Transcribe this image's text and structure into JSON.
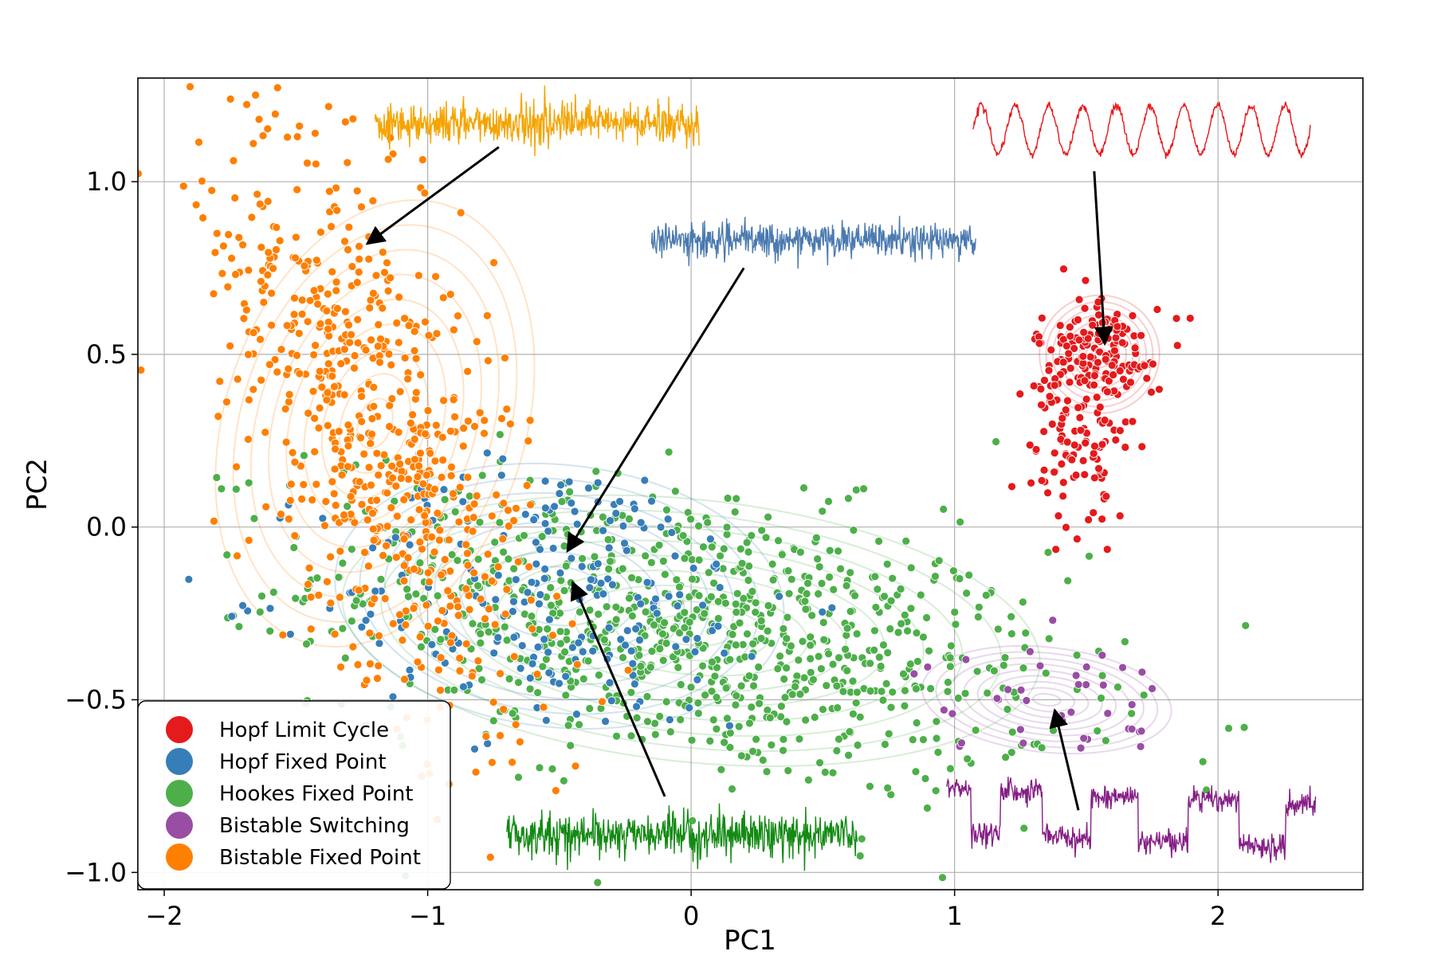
{
  "chart_data": {
    "type": "scatter",
    "title": "",
    "xlabel": "PC1",
    "ylabel": "PC2",
    "xlim": [
      -2.1,
      2.55
    ],
    "ylim": [
      -1.05,
      1.3
    ],
    "xticks": [
      -2,
      -1,
      0,
      1,
      2
    ],
    "xtick_labels": [
      "−2",
      "−1",
      "0",
      "1",
      "2"
    ],
    "yticks": [
      -1.0,
      -0.5,
      0.0,
      0.5,
      1.0
    ],
    "ytick_labels": [
      "−1.0",
      "−0.5",
      "0.0",
      "0.5",
      "1.0"
    ],
    "grid": true,
    "legend_position": "lower-left",
    "series": [
      {
        "name": "Hopf Limit Cycle",
        "color": "#e41a1c",
        "center": [
          1.55,
          0.5
        ],
        "spread": [
          0.12,
          0.09
        ],
        "count": 260,
        "tail": [
          [
            1.45,
            0.2
          ],
          [
            1.3,
            -0.1
          ],
          [
            1.0,
            -0.2
          ]
        ]
      },
      {
        "name": "Hopf Fixed Point",
        "color": "#377eb8",
        "center": [
          -0.5,
          -0.2
        ],
        "spread": [
          0.45,
          0.2
        ],
        "count": 220
      },
      {
        "name": "Hookes Fixed Point",
        "color": "#4daf4a",
        "center": [
          0.0,
          -0.3
        ],
        "spread": [
          0.7,
          0.2
        ],
        "count": 900
      },
      {
        "name": "Bistable Switching",
        "color": "#984ea3",
        "center": [
          1.35,
          -0.5
        ],
        "spread": [
          0.25,
          0.08
        ],
        "count": 40
      },
      {
        "name": "Bistable Fixed Point",
        "color": "#ff7f00",
        "center": [
          -1.2,
          0.3
        ],
        "spread": [
          0.3,
          0.35
        ],
        "count": 650
      }
    ],
    "insets": [
      {
        "series": "Bistable Fixed Point",
        "color": "#f5a400",
        "x_range": [
          -1.2,
          0.03
        ],
        "y_center": 1.17,
        "amplitude": 0.05,
        "style": "noise",
        "arrow_from": [
          -0.73,
          1.1
        ],
        "arrow_to": [
          -1.23,
          0.82
        ]
      },
      {
        "series": "Hopf Limit Cycle",
        "color": "#e8161a",
        "x_range": [
          1.07,
          2.35
        ],
        "y_center": 1.15,
        "amplitude": 0.07,
        "style": "oscillation",
        "arrow_from": [
          1.53,
          1.03
        ],
        "arrow_to": [
          1.57,
          0.53
        ]
      },
      {
        "series": "Hopf Fixed Point",
        "color": "#4a7ab0",
        "x_range": [
          -0.15,
          1.08
        ],
        "y_center": 0.83,
        "amplitude": 0.04,
        "style": "noise",
        "arrow_from": [
          0.2,
          0.75
        ],
        "arrow_to": [
          -0.47,
          -0.07
        ]
      },
      {
        "series": "Hookes Fixed Point",
        "color": "#138a13",
        "x_range": [
          -0.7,
          0.63
        ],
        "y_center": -0.89,
        "amplitude": 0.05,
        "style": "noise",
        "arrow_from": [
          -0.1,
          -0.78
        ],
        "arrow_to": [
          -0.45,
          -0.16
        ]
      },
      {
        "series": "Bistable Switching",
        "color": "#861f86",
        "x_range": [
          0.97,
          2.37
        ],
        "y_center": -0.82,
        "amplitude": 0.09,
        "style": "switching",
        "arrow_from": [
          1.47,
          -0.82
        ],
        "arrow_to": [
          1.38,
          -0.53
        ]
      }
    ]
  }
}
